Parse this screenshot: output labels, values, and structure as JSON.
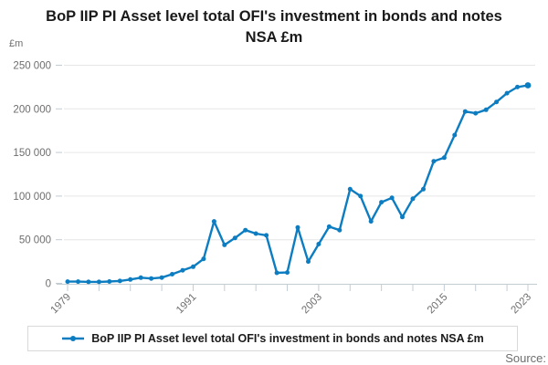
{
  "title": "BoP IIP PI Asset level total OFI's investment in bonds and notes NSA £m",
  "y_axis_unit": "£m",
  "legend": {
    "label": "BoP IIP PI Asset level total OFI's investment in bonds and notes NSA £m"
  },
  "footer": {
    "source_label": "Source:"
  },
  "colors": {
    "line": "#0d7dc2",
    "gridline": "#e6e6e6",
    "axis": "#c2ccd3",
    "tick_label": "#6e6e6e",
    "title_text": "#1a1a1a"
  },
  "chart_data": {
    "type": "line",
    "title": "BoP IIP PI Asset level total OFI's investment in bonds and notes NSA £m",
    "xlabel": "",
    "ylabel": "£m",
    "grid": true,
    "legend_position": "bottom",
    "ylim": [
      0,
      250000
    ],
    "y_tick_step": 50000,
    "y_tick_labels": [
      "0",
      "50 000",
      "100 000",
      "150 000",
      "200 000",
      "250 000"
    ],
    "x_tick_years": [
      1979,
      1982,
      1985,
      1988,
      1991,
      1994,
      1997,
      2000,
      2003,
      2006,
      2009,
      2012,
      2015,
      2018,
      2021,
      2023
    ],
    "x_labeled_ticks": [
      "1979",
      "1991",
      "2003",
      "2015",
      "2023"
    ],
    "x": [
      1979,
      1980,
      1981,
      1982,
      1983,
      1984,
      1985,
      1986,
      1987,
      1988,
      1989,
      1990,
      1991,
      1992,
      1993,
      1994,
      1995,
      1996,
      1997,
      1998,
      1999,
      2000,
      2001,
      2002,
      2003,
      2004,
      2005,
      2006,
      2007,
      2008,
      2009,
      2010,
      2011,
      2012,
      2013,
      2014,
      2015,
      2016,
      2017,
      2018,
      2019,
      2020,
      2021,
      2022,
      2023
    ],
    "values": [
      2000,
      2000,
      1700,
      1700,
      2100,
      2700,
      4400,
      6500,
      5500,
      6600,
      10500,
      15000,
      19000,
      28000,
      71000,
      44000,
      52000,
      61000,
      57000,
      55000,
      12000,
      12500,
      64000,
      25000,
      45000,
      65000,
      61000,
      108000,
      100000,
      71000,
      93000,
      98000,
      76000,
      97000,
      108000,
      140000,
      144000,
      170000,
      197000,
      195000,
      199000,
      208000,
      218000,
      225000,
      227000
    ],
    "series": [
      {
        "name": "BoP IIP PI Asset level total OFI's investment in bonds and notes NSA £m"
      }
    ]
  }
}
